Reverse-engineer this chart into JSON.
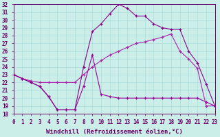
{
  "xlabel": "Windchill (Refroidissement éolien,°C)",
  "background_color": "#cceee8",
  "grid_color": "#aadddd",
  "xlim": [
    0,
    23
  ],
  "ylim": [
    18,
    32
  ],
  "xticks": [
    0,
    1,
    2,
    3,
    4,
    5,
    6,
    7,
    8,
    9,
    10,
    11,
    12,
    13,
    14,
    15,
    16,
    17,
    18,
    19,
    20,
    21,
    22,
    23
  ],
  "yticks": [
    18,
    19,
    20,
    21,
    22,
    23,
    24,
    25,
    26,
    27,
    28,
    29,
    30,
    31,
    32
  ],
  "line_color": "#990099",
  "line1_x": [
    0,
    1,
    2,
    3,
    4,
    5,
    6,
    7,
    8,
    9,
    10,
    11,
    12,
    13,
    14,
    15,
    16,
    17,
    18,
    19,
    20,
    21,
    22,
    23
  ],
  "line1_y": [
    23.0,
    22.5,
    22.0,
    21.5,
    20.2,
    18.5,
    18.5,
    18.5,
    21.5,
    25.5,
    20.5,
    20.2,
    20.0,
    20.0,
    20.0,
    20.0,
    20.0,
    20.0,
    20.0,
    20.0,
    20.0,
    20.0,
    19.5,
    19.0
  ],
  "line2_x": [
    0,
    1,
    2,
    3,
    4,
    5,
    6,
    7,
    8,
    9,
    10,
    11,
    12,
    13,
    14,
    15,
    16,
    17,
    18,
    19,
    20,
    21,
    22,
    23
  ],
  "line2_y": [
    23.0,
    22.5,
    22.0,
    21.5,
    20.2,
    18.5,
    18.5,
    18.5,
    24.0,
    28.5,
    29.5,
    30.8,
    32.0,
    31.5,
    30.5,
    30.5,
    29.5,
    29.0,
    28.8,
    28.8,
    26.0,
    24.5,
    21.8,
    19.0
  ],
  "line3_x": [
    0,
    1,
    2,
    3,
    4,
    5,
    6,
    7,
    8,
    9,
    10,
    11,
    12,
    13,
    14,
    15,
    16,
    17,
    18,
    19,
    20,
    21,
    22,
    23
  ],
  "line3_y": [
    23.0,
    22.5,
    22.2,
    22.0,
    22.0,
    22.0,
    22.0,
    22.0,
    23.0,
    24.0,
    24.8,
    25.5,
    26.0,
    26.5,
    27.0,
    27.2,
    27.5,
    27.8,
    28.2,
    26.0,
    25.0,
    23.8,
    19.0,
    19.0
  ],
  "tick_fontsize": 5.5,
  "label_fontsize": 6.5
}
